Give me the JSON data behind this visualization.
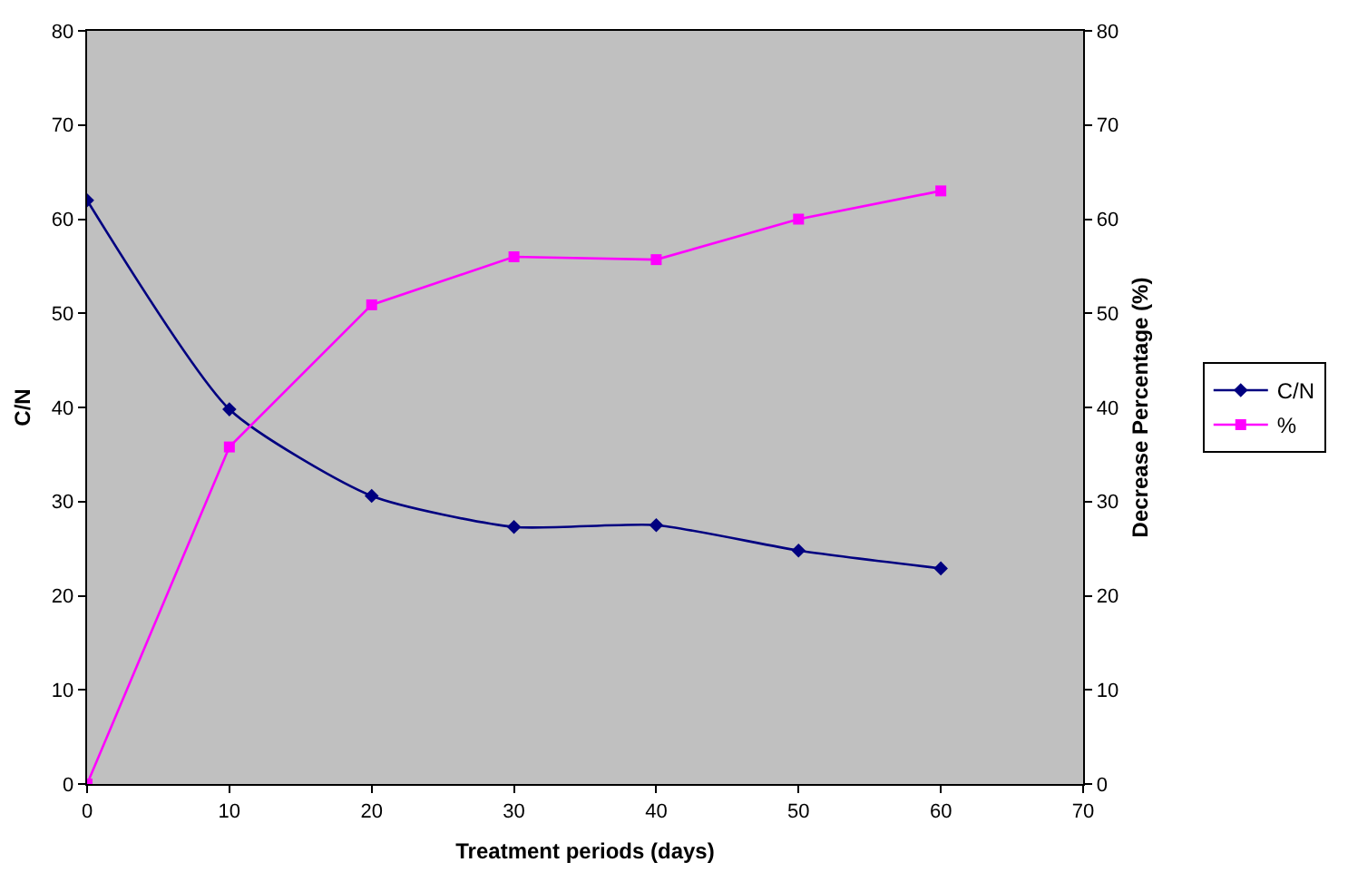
{
  "chart_data": {
    "type": "line",
    "xlabel": "Treatment periods (days)",
    "ylabel": "C/N",
    "y2label": "Decrease Percentage (%)",
    "x": [
      0,
      10,
      20,
      30,
      40,
      50,
      60
    ],
    "series": [
      {
        "name": "C/N",
        "color": "#000080",
        "marker": "diamond",
        "values": [
          62,
          39.8,
          30.6,
          27.3,
          27.5,
          24.8,
          22.9
        ]
      },
      {
        "name": "%",
        "color": "#ff00ff",
        "marker": "square",
        "axis": "y2",
        "values": [
          0,
          35.8,
          50.9,
          56,
          55.7,
          60,
          63
        ]
      }
    ],
    "xlim": [
      0,
      70
    ],
    "xticks": [
      0,
      10,
      20,
      30,
      40,
      50,
      60,
      70
    ],
    "ylim": [
      0,
      80
    ],
    "yticks": [
      0,
      10,
      20,
      30,
      40,
      50,
      60,
      70,
      80
    ],
    "y2lim": [
      0,
      80
    ],
    "y2ticks": [
      0,
      10,
      20,
      30,
      40,
      50,
      60,
      70,
      80
    ],
    "grid": false,
    "legend": "right"
  }
}
